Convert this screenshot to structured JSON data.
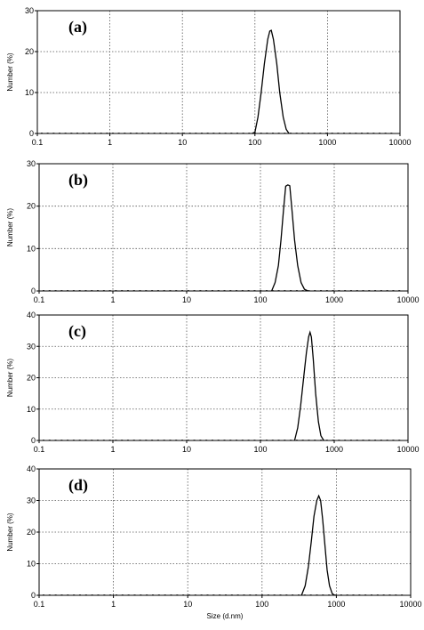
{
  "chart_data": [
    {
      "type": "line",
      "panel_label": "(a)",
      "ylabel": "Number (%)",
      "xlabel": "",
      "xscale": "log",
      "xlim": [
        0.1,
        10000
      ],
      "ylim": [
        0,
        30
      ],
      "yticks": [
        "0",
        "10",
        "20",
        "30"
      ],
      "xticks": [
        "0.1",
        "1",
        "10",
        "100",
        "1000",
        "10000"
      ],
      "grid": true,
      "series": [
        {
          "x": [
            91,
            100,
            110,
            122,
            135,
            150,
            160,
            168,
            180,
            200,
            220,
            245,
            270,
            295
          ],
          "y": [
            0,
            0.3,
            4,
            10,
            17,
            23,
            25,
            25.2,
            23,
            17,
            10,
            4,
            1,
            0
          ]
        }
      ]
    },
    {
      "type": "line",
      "panel_label": "(b)",
      "ylabel": "Number (%)",
      "xlabel": "",
      "xscale": "log",
      "xlim": [
        0.1,
        10000
      ],
      "ylim": [
        0,
        30
      ],
      "yticks": [
        "0",
        "10",
        "20",
        "30"
      ],
      "xticks": [
        "0.1",
        "1",
        "10",
        "100",
        "1000",
        "10000"
      ],
      "grid": true,
      "series": [
        {
          "x": [
            142,
            158,
            175,
            190,
            205,
            220,
            235,
            250,
            268,
            290,
            320,
            355,
            395,
            440
          ],
          "y": [
            0,
            2,
            6,
            12,
            19,
            24.7,
            25,
            24.8,
            19,
            12,
            6,
            2,
            0.4,
            0
          ]
        }
      ]
    },
    {
      "type": "line",
      "panel_label": "(c)",
      "ylabel": "Number (%)",
      "xlabel": "",
      "xscale": "log",
      "xlim": [
        0.1,
        10000
      ],
      "ylim": [
        0,
        40
      ],
      "yticks": [
        "0",
        "10",
        "20",
        "30",
        "40"
      ],
      "xticks": [
        "0.1",
        "1",
        "10",
        "100",
        "1000",
        "10000"
      ],
      "grid": true,
      "series": [
        {
          "x": [
            290,
            320,
            350,
            385,
            420,
            450,
            470,
            490,
            520,
            560,
            610,
            660,
            720
          ],
          "y": [
            0,
            4,
            11,
            20,
            28,
            33,
            34.5,
            33,
            26,
            15,
            6,
            1.5,
            0
          ]
        }
      ]
    },
    {
      "type": "line",
      "panel_label": "(d)",
      "ylabel": "Number (%)",
      "xlabel": "Size (d.nm)",
      "xscale": "log",
      "xlim": [
        0.1,
        10000
      ],
      "ylim": [
        0,
        40
      ],
      "yticks": [
        "0",
        "10",
        "20",
        "30",
        "40"
      ],
      "xticks": [
        "0.1",
        "1",
        "10",
        "100",
        "1000",
        "10000"
      ],
      "grid": true,
      "series": [
        {
          "x": [
            340,
            380,
            420,
            460,
            500,
            545,
            580,
            615,
            655,
            700,
            750,
            810,
            880,
            950
          ],
          "y": [
            0,
            3,
            9,
            17,
            25,
            30,
            31.5,
            30,
            24,
            16,
            8,
            3,
            0.5,
            0
          ]
        }
      ]
    }
  ]
}
